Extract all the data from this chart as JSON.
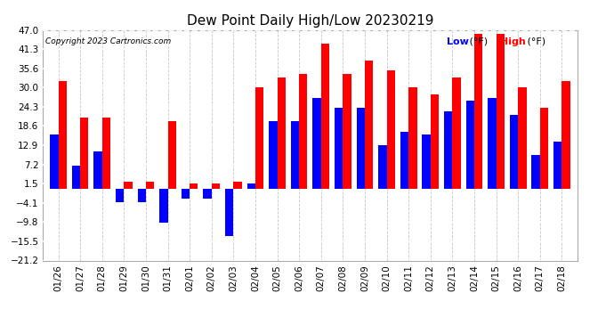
{
  "title": "Dew Point Daily High/Low 20230219",
  "copyright": "Copyright 2023 Cartronics.com",
  "legend_low": "Low",
  "legend_high": "High",
  "legend_unit": "(°F)",
  "dates": [
    "01/26",
    "01/27",
    "01/28",
    "01/29",
    "01/30",
    "01/31",
    "02/01",
    "02/02",
    "02/03",
    "02/04",
    "02/05",
    "02/06",
    "02/07",
    "02/08",
    "02/09",
    "02/10",
    "02/11",
    "02/12",
    "02/13",
    "02/14",
    "02/15",
    "02/16",
    "02/17",
    "02/18"
  ],
  "high": [
    32,
    21,
    21,
    2,
    2,
    20,
    1.5,
    1.5,
    2,
    30,
    33,
    34,
    43,
    34,
    38,
    35,
    30,
    28,
    33,
    46,
    46,
    30,
    24,
    32
  ],
  "low": [
    16,
    7,
    11,
    -4,
    -4,
    -10,
    -3,
    -3,
    -14,
    1.5,
    20,
    20,
    27,
    24,
    24,
    13,
    17,
    16,
    23,
    26,
    27,
    22,
    10,
    14
  ],
  "high_color": "#ff0000",
  "low_color": "#0000ff",
  "bg_color": "#ffffff",
  "yticks": [
    47.0,
    41.3,
    35.6,
    30.0,
    24.3,
    18.6,
    12.9,
    7.2,
    1.5,
    -4.1,
    -9.8,
    -15.5,
    -21.2
  ],
  "ymin": -21.2,
  "ymax": 47.0,
  "bar_width": 0.38,
  "figwidth": 6.9,
  "figheight": 3.75,
  "dpi": 100
}
